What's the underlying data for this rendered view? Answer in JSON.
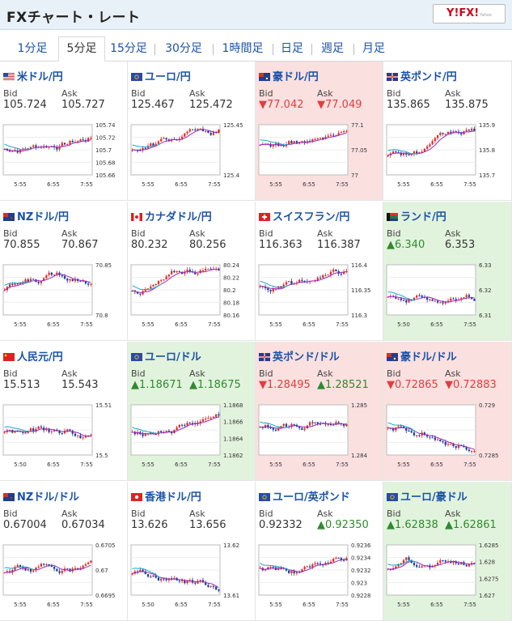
{
  "header": {
    "title": "FXチャート・レート",
    "logo": "Y!FX!"
  },
  "tabs": [
    "1分足",
    "5分足",
    "15分足",
    "30分足",
    "1時間足",
    "日足",
    "週足",
    "月足"
  ],
  "active_tab": 1,
  "colors": {
    "red": "#e23d3d",
    "green": "#2e8b2e",
    "link": "#1a52a8",
    "down_bg": "#fbe0e0",
    "up_bg": "#e2f3dd"
  },
  "pairs": [
    {
      "name": "米ドル/円",
      "bid": "105.724",
      "ask": "105.727",
      "dir": "none",
      "bid_mark": "",
      "ask_mark": "",
      "flag": "us",
      "y_ticks": [
        "105.74",
        "105.72",
        "105.7",
        "105.68",
        "105.66"
      ],
      "x_ticks": [
        "5:55",
        "6:55",
        "7:55"
      ]
    },
    {
      "name": "ユーロ/円",
      "bid": "125.467",
      "ask": "125.472",
      "dir": "none",
      "bid_mark": "",
      "ask_mark": "",
      "flag": "eu",
      "y_ticks": [
        "125.45",
        "125.4"
      ],
      "x_ticks": [
        "5:55",
        "6:55",
        "7:55"
      ]
    },
    {
      "name": "豪ドル/円",
      "bid": "77.042",
      "ask": "77.049",
      "dir": "down",
      "bid_mark": "▼",
      "ask_mark": "▼",
      "flag": "au",
      "y_ticks": [
        "77.1",
        "77.05",
        "77"
      ],
      "x_ticks": [
        "5:55",
        "6:55",
        "7:55"
      ]
    },
    {
      "name": "英ポンド/円",
      "bid": "135.865",
      "ask": "135.875",
      "dir": "none",
      "bid_mark": "",
      "ask_mark": "",
      "flag": "gb",
      "y_ticks": [
        "135.9",
        "135.8",
        "135.7"
      ],
      "x_ticks": [
        "5:55",
        "6:55",
        "7:55"
      ]
    },
    {
      "name": "NZドル/円",
      "bid": "70.855",
      "ask": "70.867",
      "dir": "none",
      "bid_mark": "",
      "ask_mark": "",
      "flag": "nz",
      "y_ticks": [
        "70.85",
        "70.8"
      ],
      "x_ticks": [
        "5:55",
        "6:55",
        "7:55"
      ]
    },
    {
      "name": "カナダドル/円",
      "bid": "80.232",
      "ask": "80.256",
      "dir": "none",
      "bid_mark": "",
      "ask_mark": "",
      "flag": "ca",
      "y_ticks": [
        "80.24",
        "80.22",
        "80.2",
        "80.18",
        "80.16"
      ],
      "x_ticks": [
        "5:55",
        "6:55",
        "7:55"
      ]
    },
    {
      "name": "スイスフラン/円",
      "bid": "116.363",
      "ask": "116.387",
      "dir": "none",
      "bid_mark": "",
      "ask_mark": "",
      "flag": "ch",
      "y_ticks": [
        "116.4",
        "116.35",
        "116.3"
      ],
      "x_ticks": [
        "5:55",
        "6:55",
        "7:55"
      ]
    },
    {
      "name": "ランド/円",
      "bid": "6.340",
      "ask": "6.353",
      "dir": "up",
      "bid_mark": "▲",
      "ask_mark": "",
      "flag": "za",
      "y_ticks": [
        "6.33",
        "6.32",
        "6.31"
      ],
      "x_ticks": [
        "5:50",
        "6:55",
        "7:55"
      ]
    },
    {
      "name": "人民元/円",
      "bid": "15.513",
      "ask": "15.543",
      "dir": "none",
      "bid_mark": "",
      "ask_mark": "",
      "flag": "cn",
      "y_ticks": [
        "15.51",
        "15.5"
      ],
      "x_ticks": [
        "5:50",
        "6:55",
        "7:55"
      ]
    },
    {
      "name": "ユーロ/ドル",
      "bid": "1.18671",
      "ask": "1.18675",
      "dir": "up",
      "bid_mark": "▲",
      "ask_mark": "▲",
      "flag": "eu",
      "y_ticks": [
        "1.1868",
        "1.1866",
        "1.1864",
        "1.1862"
      ],
      "x_ticks": [
        "5:55",
        "6:55",
        "7:55"
      ]
    },
    {
      "name": "英ポンド/ドル",
      "bid": "1.28495",
      "ask": "1.28521",
      "dir": "down",
      "bid_mark": "▼",
      "ask_mark": "▲",
      "flag": "gb",
      "y_ticks": [
        "1.285",
        "1.284"
      ],
      "x_ticks": [
        "5:55",
        "6:55",
        "7:55"
      ]
    },
    {
      "name": "豪ドル/ドル",
      "bid": "0.72865",
      "ask": "0.72883",
      "dir": "down",
      "bid_mark": "▼",
      "ask_mark": "▼",
      "flag": "au",
      "y_ticks": [
        "0.729",
        "0.7285"
      ],
      "x_ticks": [
        "5:55",
        "6:55",
        "7:55"
      ]
    },
    {
      "name": "NZドル/ドル",
      "bid": "0.67004",
      "ask": "0.67034",
      "dir": "none",
      "bid_mark": "",
      "ask_mark": "",
      "flag": "nz",
      "y_ticks": [
        "0.6705",
        "0.67",
        "0.6695"
      ],
      "x_ticks": [
        "5:55",
        "6:55",
        "7:55"
      ]
    },
    {
      "name": "香港ドル/円",
      "bid": "13.626",
      "ask": "13.656",
      "dir": "none",
      "bid_mark": "",
      "ask_mark": "",
      "flag": "hk",
      "y_ticks": [
        "13.62",
        "13.61"
      ],
      "x_ticks": [
        "5:50",
        "6:55",
        "7:55"
      ]
    },
    {
      "name": "ユーロ/英ポンド",
      "bid": "0.92332",
      "ask": "0.92350",
      "dir": "none",
      "bid_mark": "",
      "ask_mark": "▲",
      "flag": "eu",
      "y_ticks": [
        "0.9236",
        "0.9234",
        "0.9232",
        "0.923",
        "0.9228"
      ],
      "x_ticks": [
        "5:55",
        "6:55",
        "7:55"
      ]
    },
    {
      "name": "ユーロ/豪ドル",
      "bid": "1.62838",
      "ask": "1.62861",
      "dir": "up",
      "bid_mark": "▲",
      "ask_mark": "▲",
      "flag": "eu",
      "y_ticks": [
        "1.6285",
        "1.628",
        "1.6275",
        "1.627"
      ],
      "x_ticks": [
        "5:55",
        "6:55",
        "7:55"
      ]
    }
  ]
}
